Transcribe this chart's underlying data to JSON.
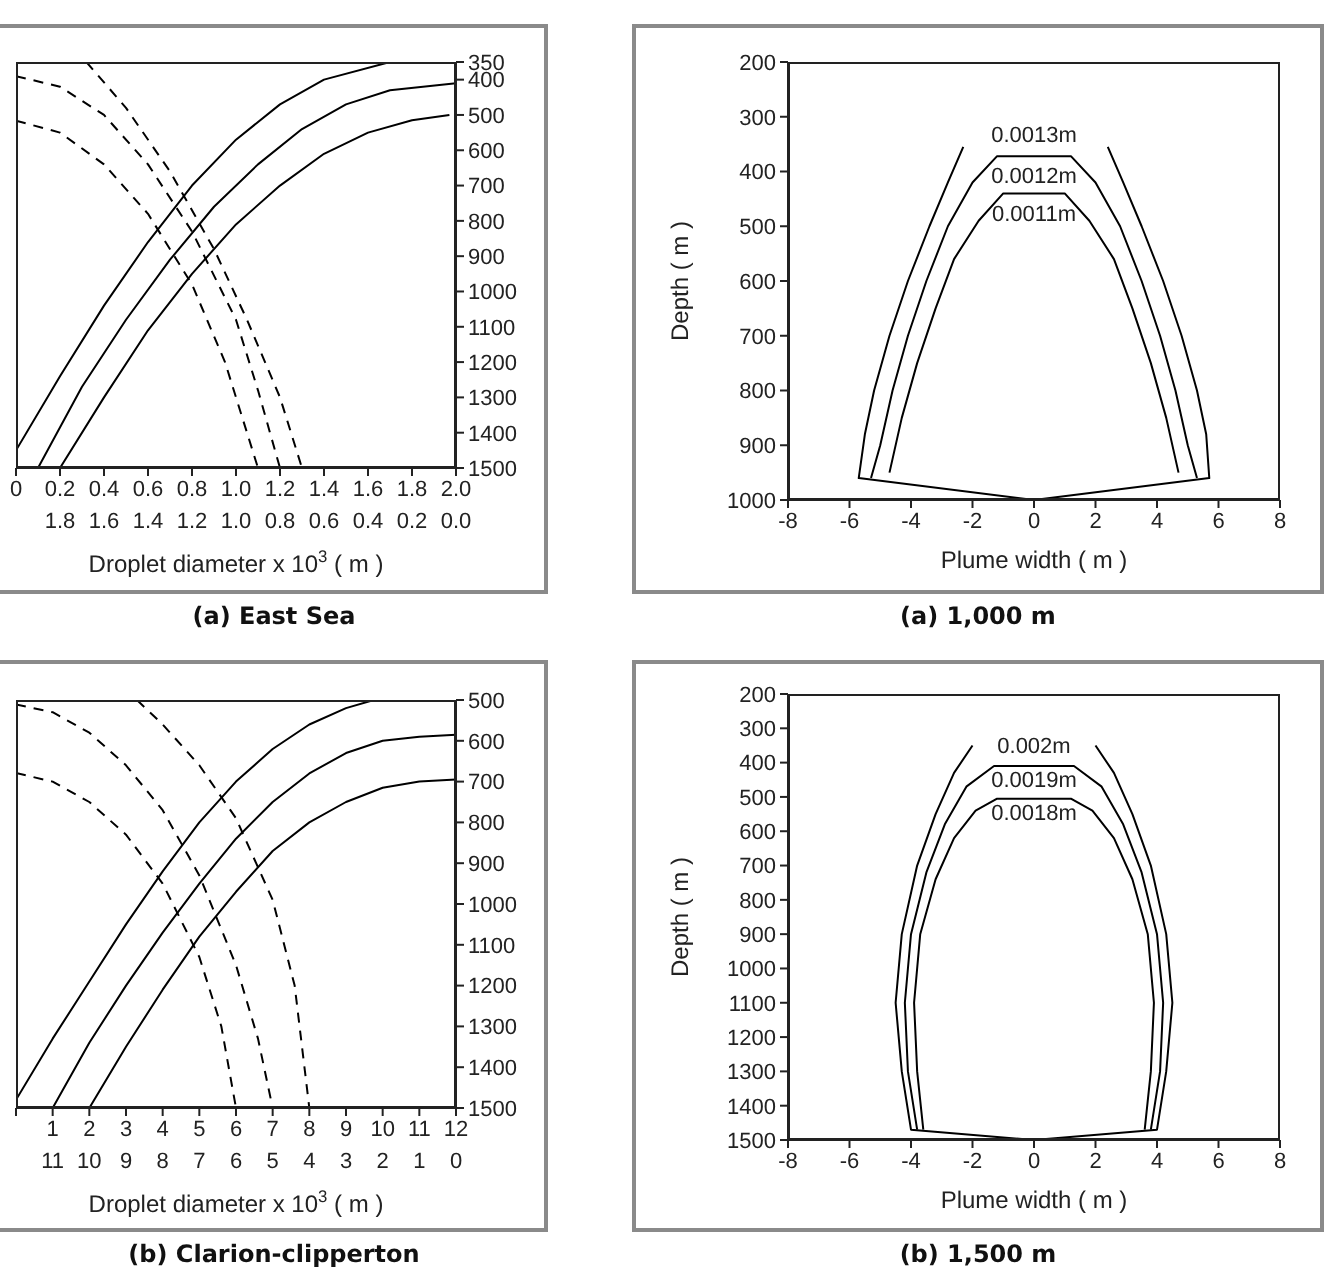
{
  "chart_data": [
    {
      "type": "line",
      "title": "(a) East Sea",
      "xlabel": "Droplet diameter x 10$^{3}$ ( m )",
      "xlim": [
        0,
        2
      ],
      "xticks": [
        {
          "value": 0,
          "label": "0"
        },
        0.2,
        0.4,
        0.6,
        0.8,
        {
          "value": 1,
          "label": "1.0"
        },
        1.2,
        1.4,
        1.6,
        1.8,
        {
          "value": 2,
          "label": "2.0"
        }
      ],
      "x2lim": [
        2,
        0
      ],
      "x2ticks": [
        1.8,
        1.6,
        1.4,
        1.2,
        {
          "value": 1,
          "label": "1.0"
        },
        0.8,
        0.6,
        0.4,
        0.2,
        {
          "value": 0,
          "label": "0.0"
        }
      ],
      "ylim": [
        1500,
        350
      ],
      "yticks": [
        350,
        400,
        500,
        600,
        700,
        800,
        900,
        1000,
        1100,
        1200,
        1300,
        1400,
        1500
      ],
      "series": [
        {
          "color": "#000000",
          "line_style": "solid",
          "x": [
            0,
            0.2,
            0.4,
            0.6,
            0.8,
            1.0,
            1.2,
            1.4,
            1.7
          ],
          "values": [
            1450,
            1240,
            1040,
            860,
            700,
            570,
            470,
            400,
            350
          ]
        },
        {
          "color": "#000000",
          "line_style": "solid",
          "x": [
            0.1,
            0.3,
            0.5,
            0.7,
            0.9,
            1.1,
            1.3,
            1.5,
            1.7,
            2.0
          ],
          "values": [
            1500,
            1270,
            1080,
            910,
            760,
            640,
            540,
            470,
            430,
            410
          ]
        },
        {
          "color": "#000000",
          "line_style": "solid",
          "x": [
            0.2,
            0.4,
            0.6,
            0.8,
            1.0,
            1.2,
            1.4,
            1.6,
            1.8,
            1.97
          ],
          "values": [
            1500,
            1300,
            1110,
            950,
            810,
            700,
            610,
            550,
            515,
            500
          ]
        },
        {
          "color": "#000000",
          "line_style": "dashed",
          "x": [
            0.32,
            0.5,
            0.7,
            0.9,
            1.05,
            1.2,
            1.3
          ],
          "values": [
            350,
            480,
            660,
            880,
            1080,
            1300,
            1500
          ]
        },
        {
          "color": "#000000",
          "line_style": "dashed",
          "x": [
            0,
            0.2,
            0.4,
            0.6,
            0.8,
            1.0,
            1.1,
            1.2
          ],
          "values": [
            390,
            420,
            500,
            640,
            830,
            1080,
            1280,
            1500
          ]
        },
        {
          "color": "#000000",
          "line_style": "dashed",
          "x": [
            0,
            0.2,
            0.4,
            0.6,
            0.8,
            0.95,
            1.1
          ],
          "values": [
            516,
            550,
            640,
            780,
            980,
            1200,
            1500
          ]
        }
      ]
    },
    {
      "type": "line",
      "title": "(a) 1,000 m",
      "xlabel": "Plume width  ( m )",
      "ylabel": "Depth ( m )",
      "xlim": [
        -8,
        8
      ],
      "xticks": [
        -8,
        -6,
        -4,
        -2,
        0,
        2,
        4,
        6,
        8
      ],
      "ylim": [
        1000,
        200
      ],
      "yticks": [
        200,
        300,
        400,
        500,
        600,
        700,
        800,
        900,
        1000
      ],
      "annotations": [
        "0.0013m",
        "0.0012m",
        "0.0011m"
      ],
      "series": [
        {
          "color": "#000000",
          "x": [
            0,
            -5.7,
            -5.5,
            -5.2,
            -4.7,
            -4.1,
            -3.4,
            -2.8,
            -2.3,
            0,
            2.4,
            2.9,
            3.5,
            4.2,
            4.8,
            5.3,
            5.6,
            5.7,
            0
          ],
          "values": [
            1000,
            960,
            880,
            800,
            700,
            600,
            500,
            420,
            355,
            null,
            355,
            420,
            500,
            600,
            700,
            800,
            880,
            960,
            1000
          ]
        },
        {
          "color": "#000000",
          "x": [
            -5.3,
            -5.0,
            -4.6,
            -4.1,
            -3.5,
            -2.8,
            -2.0,
            -1.2,
            1.2,
            2.0,
            2.8,
            3.5,
            4.1,
            4.6,
            5.0,
            5.3
          ],
          "values": [
            960,
            900,
            800,
            700,
            600,
            500,
            420,
            372,
            372,
            420,
            500,
            600,
            700,
            800,
            900,
            960
          ]
        },
        {
          "color": "#000000",
          "x": [
            -4.7,
            -4.3,
            -3.8,
            -3.2,
            -2.6,
            -1.8,
            -1.0,
            1.0,
            1.8,
            2.6,
            3.2,
            3.8,
            4.3,
            4.7
          ],
          "values": [
            950,
            850,
            750,
            650,
            560,
            490,
            440,
            440,
            490,
            560,
            650,
            750,
            850,
            950
          ]
        }
      ]
    },
    {
      "type": "line",
      "title": "(b) Clarion-clipperton",
      "xlabel": "Droplet diameter x 10$^{3}$ ( m )",
      "xlim": [
        0,
        12
      ],
      "xticks": [
        {
          "value": 0,
          "label": null
        },
        1,
        2,
        3,
        4,
        5,
        6,
        7,
        8,
        9,
        10,
        11,
        12
      ],
      "x2lim": [
        12,
        0
      ],
      "x2ticks": [
        11,
        10,
        9,
        8,
        7,
        6,
        5,
        4,
        3,
        2,
        1,
        0
      ],
      "ylim": [
        1500,
        500
      ],
      "yticks": [
        500,
        600,
        700,
        800,
        900,
        1000,
        1100,
        1200,
        1300,
        1400,
        1500
      ],
      "series": [
        {
          "color": "#000000",
          "line_style": "solid",
          "x": [
            0,
            1,
            2,
            3,
            4,
            5,
            6,
            7,
            8,
            9,
            9.76
          ],
          "values": [
            1480,
            1330,
            1190,
            1050,
            920,
            800,
            700,
            620,
            560,
            520,
            500
          ]
        },
        {
          "color": "#000000",
          "line_style": "solid",
          "x": [
            1,
            2,
            3,
            4,
            5,
            6,
            7,
            8,
            9,
            10,
            11,
            12
          ],
          "values": [
            1500,
            1340,
            1200,
            1070,
            950,
            840,
            750,
            680,
            630,
            600,
            590,
            585
          ]
        },
        {
          "color": "#000000",
          "line_style": "solid",
          "x": [
            2,
            3,
            4,
            5,
            6,
            7,
            8,
            9,
            10,
            11,
            12
          ],
          "values": [
            1500,
            1350,
            1210,
            1080,
            970,
            870,
            800,
            750,
            715,
            700,
            695
          ]
        },
        {
          "color": "#000000",
          "line_style": "dashed",
          "x": [
            3.3,
            4,
            5,
            6,
            7,
            7.6,
            8
          ],
          "values": [
            500,
            560,
            660,
            790,
            990,
            1200,
            1500
          ]
        },
        {
          "color": "#000000",
          "line_style": "dashed",
          "x": [
            0,
            1,
            2,
            3,
            4,
            5,
            6,
            6.6,
            7
          ],
          "values": [
            511,
            530,
            580,
            660,
            770,
            930,
            1150,
            1330,
            1500
          ]
        },
        {
          "color": "#000000",
          "line_style": "dashed",
          "x": [
            0,
            1,
            2,
            3,
            4,
            5,
            5.6,
            6
          ],
          "values": [
            679,
            700,
            750,
            830,
            950,
            1130,
            1300,
            1500
          ]
        }
      ]
    },
    {
      "type": "line",
      "title": "(b) 1,500 m",
      "xlabel": "Plume width  ( m )",
      "ylabel": "Depth ( m )",
      "xlim": [
        -8,
        8
      ],
      "xticks": [
        -8,
        -6,
        -4,
        -2,
        0,
        2,
        4,
        6,
        8
      ],
      "ylim": [
        1500,
        200
      ],
      "yticks": [
        200,
        300,
        400,
        500,
        600,
        700,
        800,
        900,
        1000,
        1100,
        1200,
        1300,
        1400,
        1500
      ],
      "annotations": [
        "0.002m",
        "0.0019m",
        "0.0018m"
      ],
      "series": [
        {
          "color": "#000000",
          "x": [
            0,
            -4.0,
            -4.3,
            -4.5,
            -4.3,
            -3.8,
            -3.2,
            -2.6,
            -2.0,
            0,
            2.0,
            2.6,
            3.2,
            3.8,
            4.3,
            4.5,
            4.3,
            4.0,
            0
          ],
          "values": [
            1500,
            1470,
            1300,
            1100,
            900,
            700,
            550,
            430,
            350,
            null,
            350,
            430,
            550,
            700,
            900,
            1100,
            1300,
            1470,
            1500
          ]
        },
        {
          "color": "#000000",
          "x": [
            -3.8,
            -4.1,
            -4.2,
            -4.0,
            -3.5,
            -2.9,
            -2.2,
            -1.3,
            1.3,
            2.2,
            2.9,
            3.5,
            4.0,
            4.2,
            4.1,
            3.8
          ],
          "values": [
            1470,
            1300,
            1100,
            900,
            720,
            580,
            470,
            410,
            410,
            470,
            580,
            720,
            900,
            1100,
            1300,
            1470
          ]
        },
        {
          "color": "#000000",
          "x": [
            -3.6,
            -3.8,
            -3.9,
            -3.7,
            -3.2,
            -2.6,
            -1.9,
            -1.2,
            1.2,
            1.9,
            2.6,
            3.2,
            3.7,
            3.9,
            3.8,
            3.6
          ],
          "values": [
            1470,
            1300,
            1100,
            900,
            740,
            620,
            540,
            505,
            505,
            540,
            620,
            740,
            900,
            1100,
            1300,
            1470
          ]
        }
      ]
    }
  ]
}
